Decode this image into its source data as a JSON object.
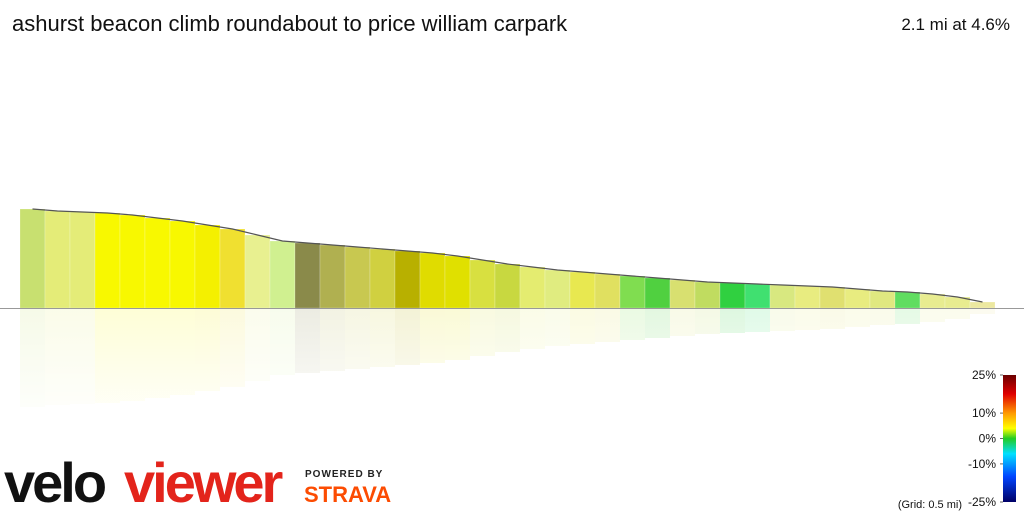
{
  "header": {
    "title": "ashurst beacon climb roundabout to price william carpark",
    "summary": "2.1 mi at 4.6%"
  },
  "profile": {
    "heights": [
      99,
      97,
      96,
      95,
      93,
      90,
      87,
      83,
      79,
      73,
      67,
      65,
      63,
      61,
      59,
      57,
      55,
      52,
      48,
      44,
      41,
      38,
      36,
      34,
      32,
      30,
      28,
      26,
      25,
      24,
      23,
      22,
      21,
      19,
      17,
      16,
      14,
      11,
      6
    ],
    "colors": [
      "#c8e070",
      "#e4ec78",
      "#e4ec78",
      "#f8f800",
      "#f8f800",
      "#f8f800",
      "#f8f800",
      "#f4f000",
      "#f0e030",
      "#e8f090",
      "#d0f090",
      "#8a8a4a",
      "#b0b050",
      "#c8c850",
      "#d0d040",
      "#b8b000",
      "#e0dc00",
      "#e0e000",
      "#d8e040",
      "#c8d840",
      "#e4ec70",
      "#e0ec80",
      "#e8e850",
      "#e0e060",
      "#80dd50",
      "#50d040",
      "#d8e070",
      "#c0dc60",
      "#30d040",
      "#40e070",
      "#d8e880",
      "#e8ec80",
      "#e0e070",
      "#e8ec80",
      "#e0e880",
      "#60dd60",
      "#e8ec90",
      "#e8ec90",
      "#ece8a0"
    ]
  },
  "legend": {
    "range": [
      -25,
      25
    ],
    "ticks": [
      {
        "value": 25,
        "label": "25%"
      },
      {
        "value": 10,
        "label": "10%"
      },
      {
        "value": 0,
        "label": "0%"
      },
      {
        "value": -10,
        "label": "-10%"
      },
      {
        "value": -25,
        "label": "-25%"
      }
    ],
    "grid": "(Grid: 0.5 mi)"
  },
  "branding": {
    "logo_left": "velo",
    "logo_right": "viewer",
    "powered": "POWERED BY",
    "strava": "STRAVA"
  }
}
